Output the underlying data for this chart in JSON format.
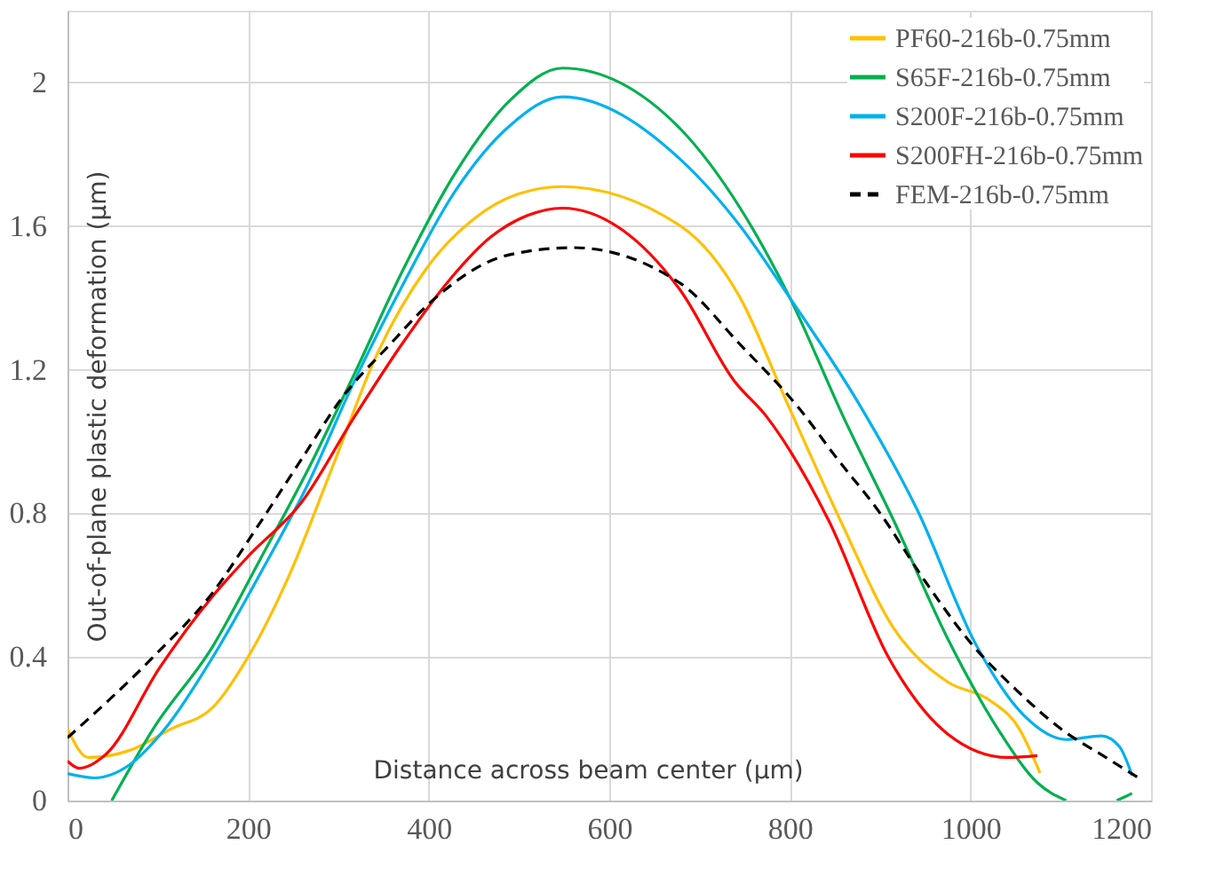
{
  "chart_data": {
    "type": "line",
    "xlabel": "Distance across beam center (µm)",
    "ylabel": "Out-of-plane plastic deformation (µm)",
    "xlim": [
      0,
      1200
    ],
    "xticks": [
      0,
      200,
      400,
      600,
      800,
      1000,
      1200
    ],
    "ylim": [
      0,
      2.2
    ],
    "yticks": [
      0,
      0.4,
      0.8,
      1.2,
      1.6,
      2
    ],
    "grid": true,
    "legend": "top right",
    "series": [
      {
        "name": "PF60-216b-0.75mm",
        "color": "#ffc000",
        "line_style": "solid",
        "x": [
          0,
          23,
          69,
          115,
          161,
          200,
          246,
          292,
          344,
          397,
          450,
          500,
          548,
          679,
          745,
          797,
          856,
          915,
          975,
          1021,
          1054,
          1077
        ],
        "values": [
          0.2,
          0.12,
          0.14,
          0.2,
          0.26,
          0.4,
          0.63,
          0.92,
          1.25,
          1.48,
          1.62,
          1.69,
          1.71,
          1.6,
          1.4,
          1.107,
          0.78,
          0.48,
          0.33,
          0.28,
          0.2,
          0.077
        ]
      },
      {
        "name": "S65F-216b-0.75mm",
        "color": "#00b050",
        "line_style": "solid",
        "x": [
          49,
          95,
          161,
          213,
          266,
          318,
          370,
          430,
          490,
          548,
          679,
          745,
          800,
          859,
          915,
          975,
          1034,
          1074,
          1106,
          1140,
          1162,
          1179
        ],
        "values": [
          0,
          0.2,
          0.43,
          0.67,
          0.92,
          1.19,
          1.47,
          1.75,
          1.95,
          2.04,
          1.87,
          1.65,
          1.4,
          1.07,
          0.78,
          0.45,
          0.185,
          0.05,
          0,
          null,
          0,
          0.02
        ]
      },
      {
        "name": "S200F-216b-0.75mm",
        "color": "#00b0f0",
        "line_style": "solid",
        "x": [
          0,
          30,
          69,
          108,
          161,
          213,
          266,
          318,
          370,
          430,
          490,
          548,
          679,
          745,
          800,
          876,
          941,
          1007,
          1060,
          1106,
          1145,
          1165,
          1179
        ],
        "values": [
          0.075,
          0.063,
          0.1,
          0.2,
          0.4,
          0.63,
          0.88,
          1.17,
          1.43,
          1.7,
          1.88,
          1.96,
          1.785,
          1.6,
          1.4,
          1.107,
          0.81,
          0.43,
          0.235,
          0.17,
          0.18,
          0.15,
          0.07
        ]
      },
      {
        "name": "S200FH-216b-0.75mm",
        "color": "#ff0000",
        "line_style": "solid",
        "x": [
          0,
          13,
          43,
          102,
          161,
          200,
          259,
          318,
          370,
          423,
          469,
          510,
          548,
          614,
          679,
          738,
          774,
          843,
          909,
          975,
          1041,
          1074
        ],
        "values": [
          0.11,
          0.09,
          0.13,
          0.37,
          0.57,
          0.68,
          0.83,
          1.07,
          1.27,
          1.45,
          1.57,
          1.63,
          1.65,
          1.59,
          1.42,
          1.17,
          1.07,
          0.78,
          0.4,
          0.185,
          0.12,
          0.125
        ]
      },
      {
        "name": "FEM-216b-0.75mm",
        "color": "#000000",
        "line_style": "dashed",
        "x": [
          0,
          95,
          161,
          207,
          259,
          305,
          357,
          403,
          489,
          560,
          679,
          745,
          811,
          850,
          900,
          950,
          1000,
          1050,
          1100,
          1150,
          1185
        ],
        "values": [
          0.175,
          0.4,
          0.58,
          0.75,
          0.95,
          1.125,
          1.27,
          1.39,
          1.52,
          1.54,
          1.44,
          1.27,
          1.09,
          0.96,
          0.8,
          0.61,
          0.44,
          0.31,
          0.2,
          0.12,
          0.065
        ]
      }
    ]
  }
}
